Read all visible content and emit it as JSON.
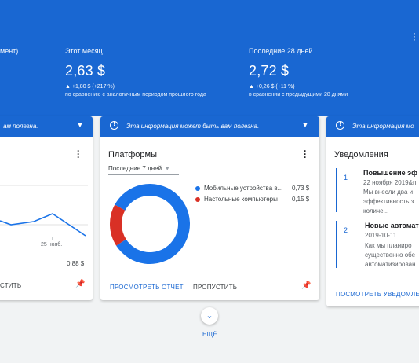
{
  "summary": {
    "left_label_fragment": "мент)",
    "this_month": {
      "label": "Этот месяц",
      "value": "2,63 $",
      "change": "▲ +1,80 $ (+217 %)",
      "comparison": "по сравнению с аналогичным периодом прошлого года"
    },
    "last_28_days": {
      "label": "Последние 28 дней",
      "value": "2,72 $",
      "change": "▲ +0,26 $ (+11 %)",
      "comparison": "в сравнении с предыдущими 28 днями"
    }
  },
  "banner": {
    "text": "Эта информация может быть вам полезна.",
    "left_fragment": "ам полезна.",
    "right_fragment": "Эта информация мо"
  },
  "left_card": {
    "x_tick": "25 нояб.",
    "value": "0,88 $",
    "skip_fragment": "СТИТЬ"
  },
  "platforms_card": {
    "title": "Платформы",
    "period": "Последние 7 дней",
    "view_report": "ПРОСМОТРЕТЬ ОТЧЕТ",
    "skip": "ПРОПУСТИТЬ",
    "colors": {
      "mobile": "#1a73e8",
      "desktop": "#d93025"
    }
  },
  "chart_data": {
    "type": "pie",
    "categories": [
      "Мобильные устройства в...",
      "Настольные компьютеры"
    ],
    "values": [
      0.73,
      0.15
    ],
    "value_labels": [
      "0,73 $",
      "0,15 $"
    ],
    "title": ""
  },
  "notifications_card": {
    "title": "Уведомления",
    "items": [
      {
        "num": "1",
        "title": "Повышение эф",
        "date": "22 ноября 2019&n",
        "lines": [
          "Мы внесли два и",
          "эффективность з",
          "количе..."
        ]
      },
      {
        "num": "2",
        "title": "Новые автомат",
        "date": "2019-10-11",
        "lines": [
          "Как мы планиро",
          "существенно обе",
          "автоматизирован"
        ]
      }
    ],
    "view_link": "ПОСМОТРЕТЬ УВЕДОМЛЕ"
  },
  "more": {
    "label": "ЕЩЁ"
  }
}
